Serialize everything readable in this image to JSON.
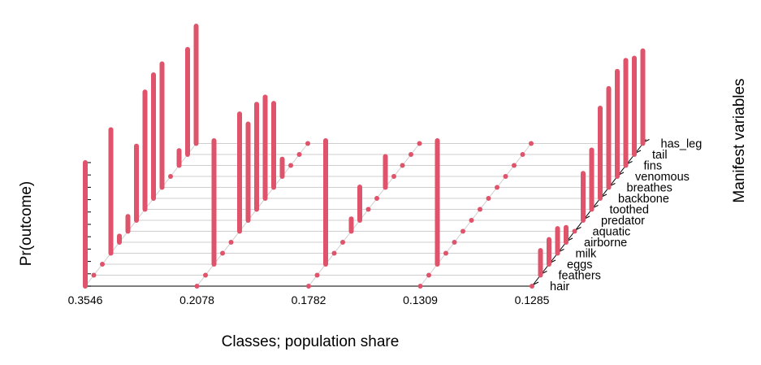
{
  "chart_data": {
    "type": "bar",
    "subtype": "3d-lollipop",
    "xlabel": "Classes; population share",
    "ylabel": "Pr(outcome)",
    "zlabel": "Manifest variables",
    "ylim": [
      0,
      1
    ],
    "classes": [
      "0.3546",
      "0.2078",
      "0.1782",
      "0.1309",
      "0.1285"
    ],
    "variables": [
      "hair",
      "feathers",
      "eggs",
      "milk",
      "airborne",
      "aquatic",
      "predator",
      "toothed",
      "backbone",
      "breathes",
      "venomous",
      "fins",
      "tail",
      "has_leg"
    ],
    "bar_color": "#df536b",
    "series": [
      {
        "class": "0.3546",
        "values": [
          1.0,
          0.0,
          0.0,
          1.0,
          0.05,
          0.12,
          0.6,
          0.95,
          1.0,
          1.0,
          0.0,
          0.12,
          0.85,
          0.95
        ]
      },
      {
        "class": "0.2078",
        "values": [
          0.0,
          0.0,
          1.0,
          0.0,
          0.0,
          0.95,
          0.78,
          0.85,
          0.82,
          0.68,
          0.14,
          0.0,
          0.0,
          0.0
        ]
      },
      {
        "class": "0.1782",
        "values": [
          0.0,
          0.0,
          1.0,
          0.0,
          0.0,
          0.1,
          0.27,
          0.0,
          0.0,
          0.25,
          0.0,
          0.0,
          0.0,
          0.0
        ]
      },
      {
        "class": "0.1309",
        "values": [
          0.0,
          0.0,
          1.0,
          0.0,
          0.0,
          0.0,
          0.0,
          0.0,
          0.0,
          0.0,
          0.0,
          0.0,
          0.0,
          0.0
        ]
      },
      {
        "class": "0.1285",
        "values": [
          0.0,
          0.2,
          0.2,
          0.2,
          0.12,
          0.0,
          0.38,
          0.48,
          0.73,
          0.8,
          0.85,
          0.85,
          0.78,
          0.75
        ]
      }
    ]
  }
}
